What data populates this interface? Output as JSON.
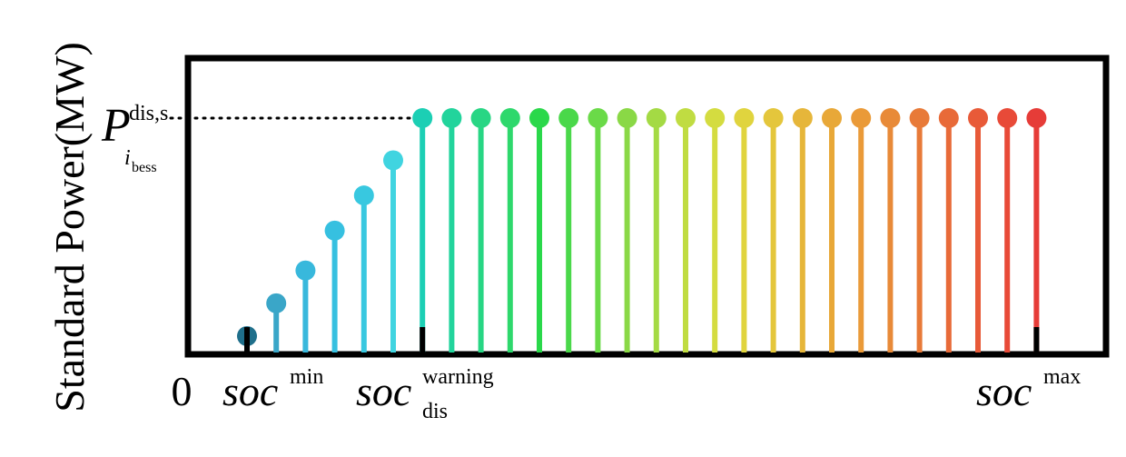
{
  "chart_data": {
    "type": "stem",
    "ylabel": "Standard Power(MW)",
    "origin_label": "0",
    "x_labels": {
      "soc_min": {
        "base": "soc",
        "sup": "min"
      },
      "soc_warning": {
        "base": "soc",
        "sup": "warning",
        "sub": "dis"
      },
      "soc_max": {
        "base": "soc",
        "sup": "max"
      }
    },
    "y_level_label": {
      "base": "P",
      "sup": "dis,s",
      "sub": "i",
      "sub_sub": "bess"
    },
    "stems": [
      {
        "value": 0.07,
        "color": "#1f6f8b"
      },
      {
        "value": 0.21,
        "color": "#3aa6c8"
      },
      {
        "value": 0.35,
        "color": "#38b8dc"
      },
      {
        "value": 0.52,
        "color": "#36c0e0"
      },
      {
        "value": 0.67,
        "color": "#38c8e0"
      },
      {
        "value": 0.82,
        "color": "#40d4e0"
      },
      {
        "value": 1.0,
        "color": "#1ccfb4"
      },
      {
        "value": 1.0,
        "color": "#22d49c"
      },
      {
        "value": 1.0,
        "color": "#28d684"
      },
      {
        "value": 1.0,
        "color": "#2ed86c"
      },
      {
        "value": 1.0,
        "color": "#2ad84a"
      },
      {
        "value": 1.0,
        "color": "#4ad84a"
      },
      {
        "value": 1.0,
        "color": "#6ada48"
      },
      {
        "value": 1.0,
        "color": "#8ad846"
      },
      {
        "value": 1.0,
        "color": "#a4da44"
      },
      {
        "value": 1.0,
        "color": "#c0dc42"
      },
      {
        "value": 1.0,
        "color": "#d4dc40"
      },
      {
        "value": 1.0,
        "color": "#e0d43e"
      },
      {
        "value": 1.0,
        "color": "#e4c63c"
      },
      {
        "value": 1.0,
        "color": "#e6b63a"
      },
      {
        "value": 1.0,
        "color": "#e8a838"
      },
      {
        "value": 1.0,
        "color": "#ea9a38"
      },
      {
        "value": 1.0,
        "color": "#e88a38"
      },
      {
        "value": 1.0,
        "color": "#e87a38"
      },
      {
        "value": 1.0,
        "color": "#e86a38"
      },
      {
        "value": 1.0,
        "color": "#e85a38"
      },
      {
        "value": 1.0,
        "color": "#e84a38"
      },
      {
        "value": 1.0,
        "color": "#e63c38"
      }
    ],
    "tick_stems": [
      0,
      6,
      27
    ],
    "level_line_to_stem": 6,
    "frame_color": "#000000"
  }
}
